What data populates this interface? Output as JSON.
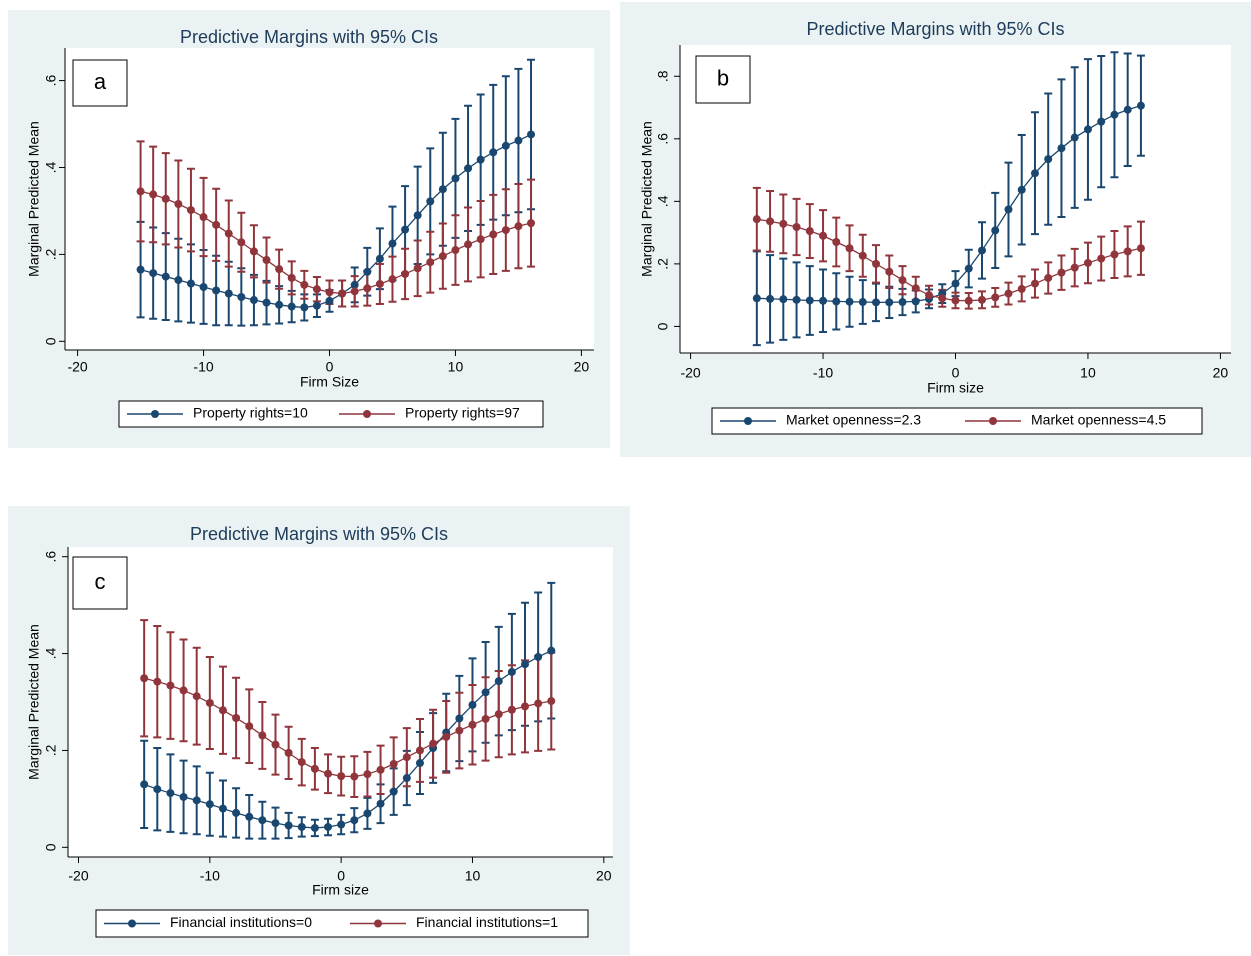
{
  "chart_data": [
    {
      "type": "line",
      "title": "Predictive Margins with 95% CIs",
      "panel_label": "a",
      "xlabel": "Firm Size",
      "ylabel": "Marginal Predicted Mean",
      "xlim": [
        -21,
        21
      ],
      "xticks": [
        -20,
        -10,
        0,
        10,
        20
      ],
      "ylim": [
        -0.02,
        0.675
      ],
      "yticks": [
        0,
        {
          "value": 0.2,
          "label": ".2"
        },
        {
          "value": 0.4,
          "label": ".4"
        },
        {
          "value": 0.6,
          "label": ".6"
        }
      ],
      "grid": false,
      "legend": "bottom",
      "x": [
        -15,
        -14,
        -13,
        -12,
        -11,
        -10,
        -9,
        -8,
        -7,
        -6,
        -5,
        -4,
        -3,
        -2,
        -1,
        0,
        1,
        2,
        3,
        4,
        5,
        6,
        7,
        8,
        9,
        10,
        11,
        12,
        13,
        14,
        15,
        16
      ],
      "series": [
        {
          "name": "Property rights=10",
          "color": "#1a476f",
          "values": [
            0.165,
            0.157,
            0.149,
            0.141,
            0.133,
            0.125,
            0.117,
            0.11,
            0.102,
            0.095,
            0.089,
            0.084,
            0.08,
            0.078,
            0.082,
            0.093,
            0.11,
            0.13,
            0.16,
            0.19,
            0.225,
            0.257,
            0.29,
            0.322,
            0.35,
            0.375,
            0.398,
            0.418,
            0.435,
            0.45,
            0.462,
            0.476
          ],
          "errors": [
            0.11,
            0.105,
            0.1,
            0.095,
            0.09,
            0.085,
            0.08,
            0.073,
            0.066,
            0.058,
            0.05,
            0.043,
            0.036,
            0.03,
            0.026,
            0.025,
            0.03,
            0.04,
            0.055,
            0.07,
            0.085,
            0.1,
            0.112,
            0.122,
            0.13,
            0.137,
            0.144,
            0.15,
            0.155,
            0.16,
            0.165,
            0.172
          ]
        },
        {
          "name": "Property rights=97",
          "color": "#90353b",
          "values": [
            0.345,
            0.338,
            0.328,
            0.316,
            0.302,
            0.286,
            0.268,
            0.248,
            0.228,
            0.207,
            0.187,
            0.166,
            0.146,
            0.13,
            0.12,
            0.113,
            0.11,
            0.115,
            0.122,
            0.132,
            0.143,
            0.155,
            0.168,
            0.182,
            0.196,
            0.21,
            0.223,
            0.235,
            0.246,
            0.256,
            0.265,
            0.272
          ],
          "errors": [
            0.115,
            0.11,
            0.105,
            0.1,
            0.095,
            0.09,
            0.083,
            0.076,
            0.068,
            0.06,
            0.052,
            0.045,
            0.038,
            0.032,
            0.028,
            0.027,
            0.03,
            0.035,
            0.04,
            0.046,
            0.052,
            0.058,
            0.064,
            0.07,
            0.075,
            0.08,
            0.085,
            0.088,
            0.091,
            0.094,
            0.097,
            0.1
          ]
        }
      ]
    },
    {
      "type": "line",
      "title": "Predictive Margins with 95% CIs",
      "panel_label": "b",
      "xlabel": "Firm size",
      "ylabel": "Marginal Predicted Mean",
      "xlim": [
        -20.8,
        20.8
      ],
      "xticks": [
        -20,
        -10,
        0,
        10,
        20
      ],
      "ylim": [
        -0.085,
        0.9
      ],
      "yticks": [
        0,
        {
          "value": 0.2,
          "label": ".2"
        },
        {
          "value": 0.4,
          "label": ".4"
        },
        {
          "value": 0.6,
          "label": ".6"
        },
        {
          "value": 0.8,
          "label": ".8"
        }
      ],
      "grid": false,
      "legend": "bottom",
      "x": [
        -15,
        -14,
        -13,
        -12,
        -11,
        -10,
        -9,
        -8,
        -7,
        -6,
        -5,
        -4,
        -3,
        -2,
        -1,
        0,
        1,
        2,
        3,
        4,
        5,
        6,
        7,
        8,
        9,
        10,
        11,
        12,
        13,
        14
      ],
      "series": [
        {
          "name": "Market openness=2.3",
          "color": "#1a476f",
          "values": [
            0.09,
            0.088,
            0.087,
            0.085,
            0.083,
            0.082,
            0.08,
            0.079,
            0.078,
            0.077,
            0.077,
            0.078,
            0.08,
            0.088,
            0.105,
            0.137,
            0.185,
            0.243,
            0.307,
            0.374,
            0.437,
            0.49,
            0.535,
            0.57,
            0.604,
            0.63,
            0.655,
            0.677,
            0.693,
            0.706
          ],
          "errors": [
            0.15,
            0.14,
            0.13,
            0.12,
            0.11,
            0.1,
            0.09,
            0.08,
            0.07,
            0.06,
            0.05,
            0.042,
            0.035,
            0.03,
            0.03,
            0.04,
            0.06,
            0.09,
            0.12,
            0.15,
            0.175,
            0.195,
            0.21,
            0.22,
            0.225,
            0.225,
            0.21,
            0.2,
            0.18,
            0.16
          ]
        },
        {
          "name": "Market openness=4.5",
          "color": "#90353b",
          "values": [
            0.343,
            0.336,
            0.328,
            0.318,
            0.305,
            0.29,
            0.27,
            0.25,
            0.226,
            0.2,
            0.175,
            0.148,
            0.122,
            0.1,
            0.09,
            0.083,
            0.082,
            0.085,
            0.093,
            0.105,
            0.12,
            0.137,
            0.155,
            0.172,
            0.188,
            0.203,
            0.217,
            0.23,
            0.24,
            0.25
          ],
          "errors": [
            0.1,
            0.097,
            0.094,
            0.09,
            0.086,
            0.082,
            0.078,
            0.073,
            0.067,
            0.06,
            0.052,
            0.045,
            0.037,
            0.03,
            0.027,
            0.025,
            0.025,
            0.027,
            0.03,
            0.035,
            0.04,
            0.045,
            0.05,
            0.055,
            0.06,
            0.065,
            0.07,
            0.075,
            0.08,
            0.085
          ]
        }
      ]
    },
    {
      "type": "line",
      "title": "Predictive Margins with 95% CIs",
      "panel_label": "c",
      "xlabel": "Firm size",
      "ylabel": "Marginal Predicted Mean",
      "xlim": [
        -20.8,
        20.7
      ],
      "xticks": [
        -20,
        -10,
        0,
        10,
        20
      ],
      "ylim": [
        -0.02,
        0.62
      ],
      "yticks": [
        0,
        {
          "value": 0.2,
          "label": ".2"
        },
        {
          "value": 0.4,
          "label": ".4"
        },
        {
          "value": 0.6,
          "label": ".6"
        }
      ],
      "grid": false,
      "legend": "bottom",
      "x": [
        -15,
        -14,
        -13,
        -12,
        -11,
        -10,
        -9,
        -8,
        -7,
        -6,
        -5,
        -4,
        -3,
        -2,
        -1,
        0,
        1,
        2,
        3,
        4,
        5,
        6,
        7,
        8,
        9,
        10,
        11,
        12,
        13,
        14,
        15,
        16
      ],
      "series": [
        {
          "name": "Financial institutions=0",
          "color": "#1a476f",
          "values": [
            0.13,
            0.12,
            0.112,
            0.104,
            0.097,
            0.089,
            0.08,
            0.071,
            0.063,
            0.056,
            0.05,
            0.045,
            0.042,
            0.04,
            0.042,
            0.047,
            0.056,
            0.07,
            0.09,
            0.115,
            0.143,
            0.174,
            0.205,
            0.237,
            0.266,
            0.294,
            0.32,
            0.343,
            0.362,
            0.378,
            0.393,
            0.406
          ],
          "errors": [
            0.09,
            0.085,
            0.08,
            0.075,
            0.07,
            0.065,
            0.058,
            0.051,
            0.045,
            0.038,
            0.032,
            0.026,
            0.02,
            0.017,
            0.017,
            0.02,
            0.025,
            0.032,
            0.04,
            0.048,
            0.056,
            0.064,
            0.072,
            0.08,
            0.088,
            0.096,
            0.104,
            0.112,
            0.12,
            0.127,
            0.133,
            0.14
          ]
        },
        {
          "name": "Financial institutions=1",
          "color": "#90353b",
          "values": [
            0.349,
            0.342,
            0.334,
            0.324,
            0.312,
            0.298,
            0.283,
            0.267,
            0.25,
            0.231,
            0.212,
            0.195,
            0.176,
            0.162,
            0.152,
            0.147,
            0.146,
            0.151,
            0.16,
            0.172,
            0.186,
            0.2,
            0.214,
            0.228,
            0.241,
            0.253,
            0.265,
            0.275,
            0.284,
            0.291,
            0.297,
            0.302
          ],
          "errors": [
            0.12,
            0.115,
            0.11,
            0.105,
            0.1,
            0.095,
            0.09,
            0.083,
            0.076,
            0.069,
            0.062,
            0.054,
            0.048,
            0.043,
            0.04,
            0.04,
            0.042,
            0.046,
            0.05,
            0.055,
            0.06,
            0.065,
            0.07,
            0.074,
            0.078,
            0.082,
            0.086,
            0.089,
            0.092,
            0.095,
            0.098,
            0.1
          ]
        }
      ]
    }
  ]
}
